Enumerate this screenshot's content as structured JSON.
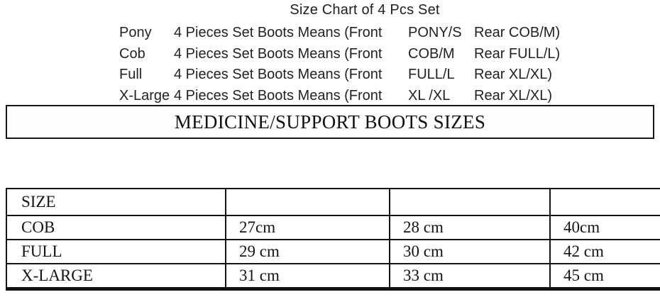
{
  "page": {
    "background_color": "#ffffff",
    "text_color": "#1c1c1c",
    "border_color": "#141414"
  },
  "header": {
    "title": "Size Chart of 4 Pcs Set",
    "set_lines": [
      {
        "label": "Pony",
        "means": "4 Pieces Set Boots Means (Front",
        "front": "PONY/S",
        "rear": "Rear COB/M)"
      },
      {
        "label": "Cob",
        "means": "4 Pieces Set Boots Means (Front",
        "front": "COB/M",
        "rear": "Rear FULL/L)"
      },
      {
        "label": "Full",
        "means": "4 Pieces Set Boots Means (Front",
        "front": "FULL/L",
        "rear": "Rear XL/XL)"
      },
      {
        "label": "X-Large",
        "means": "4 Pieces Set Boots Means (Front",
        "front": "XL /XL",
        "rear": "Rear XL/XL)"
      }
    ]
  },
  "banner": {
    "title": "MEDICINE/SUPPORT BOOTS SIZES"
  },
  "size_table": {
    "header_row": [
      "SIZE",
      "",
      "",
      ""
    ],
    "rows": [
      [
        "COB",
        "27cm",
        "28 cm",
        "40cm"
      ],
      [
        "FULL",
        "29 cm",
        "30 cm",
        "42 cm"
      ],
      [
        "X-LARGE",
        "31 cm",
        "33 cm",
        "45 cm"
      ]
    ]
  },
  "chart_data": {
    "type": "table",
    "title": "MEDICINE/SUPPORT BOOTS SIZES",
    "columns": [
      "SIZE",
      "",
      "",
      ""
    ],
    "rows": [
      [
        "COB",
        "27cm",
        "28 cm",
        "40cm"
      ],
      [
        "FULL",
        "29 cm",
        "30 cm",
        "42 cm"
      ],
      [
        "X-LARGE",
        "31 cm",
        "33 cm",
        "45 cm"
      ]
    ]
  }
}
